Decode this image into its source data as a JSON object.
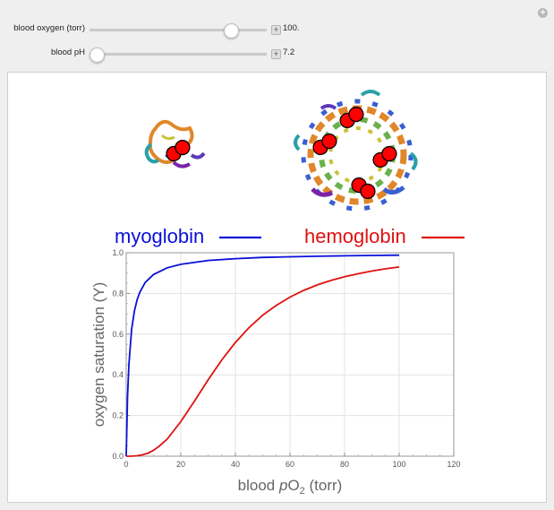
{
  "controls": {
    "oxygen": {
      "label": "blood oxygen (torr)",
      "value": "100.",
      "fraction": 0.8
    },
    "ph": {
      "label": "blood pH",
      "value": "7.2",
      "fraction": 0.04
    }
  },
  "legend": {
    "myoglobin": "myoglobin",
    "hemoglobin": "hemoglobin"
  },
  "colors": {
    "myoglobin": "#0a10d8",
    "hemoglobin": "#e01010",
    "heme": "#ff0000"
  },
  "chart_data": {
    "type": "line",
    "xlabel_prefix": "blood ",
    "xlabel_italic": "p",
    "xlabel_main": "O",
    "xlabel_sub": "2",
    "xlabel_suffix": " (torr)",
    "ylabel": "oxygen saturation (Y)",
    "xlim": [
      0,
      120
    ],
    "ylim": [
      0,
      1
    ],
    "x_ticks": [
      "0",
      "20",
      "40",
      "60",
      "80",
      "100",
      "120"
    ],
    "y_ticks": [
      "0.0",
      "0.2",
      "0.4",
      "0.6",
      "0.8",
      "1.0"
    ],
    "grid": true,
    "series": [
      {
        "name": "myoglobin",
        "x": [
          0,
          0.5,
          1,
          2,
          3,
          4,
          5,
          7,
          10,
          15,
          20,
          30,
          40,
          50,
          60,
          70,
          80,
          90,
          100
        ],
        "y": [
          0,
          0.294,
          0.455,
          0.625,
          0.714,
          0.769,
          0.806,
          0.854,
          0.893,
          0.926,
          0.943,
          0.962,
          0.971,
          0.977,
          0.98,
          0.983,
          0.985,
          0.987,
          0.988
        ]
      },
      {
        "name": "hemoglobin",
        "x": [
          0,
          2,
          4,
          6,
          8,
          10,
          12,
          15,
          20,
          25,
          30,
          35,
          40,
          45,
          50,
          55,
          60,
          65,
          70,
          75,
          80,
          85,
          90,
          95,
          100
        ],
        "y": [
          0,
          0.0003,
          0.002,
          0.007,
          0.015,
          0.029,
          0.048,
          0.084,
          0.17,
          0.271,
          0.375,
          0.473,
          0.559,
          0.632,
          0.693,
          0.742,
          0.782,
          0.815,
          0.842,
          0.864,
          0.882,
          0.897,
          0.91,
          0.921,
          0.93
        ]
      }
    ]
  }
}
